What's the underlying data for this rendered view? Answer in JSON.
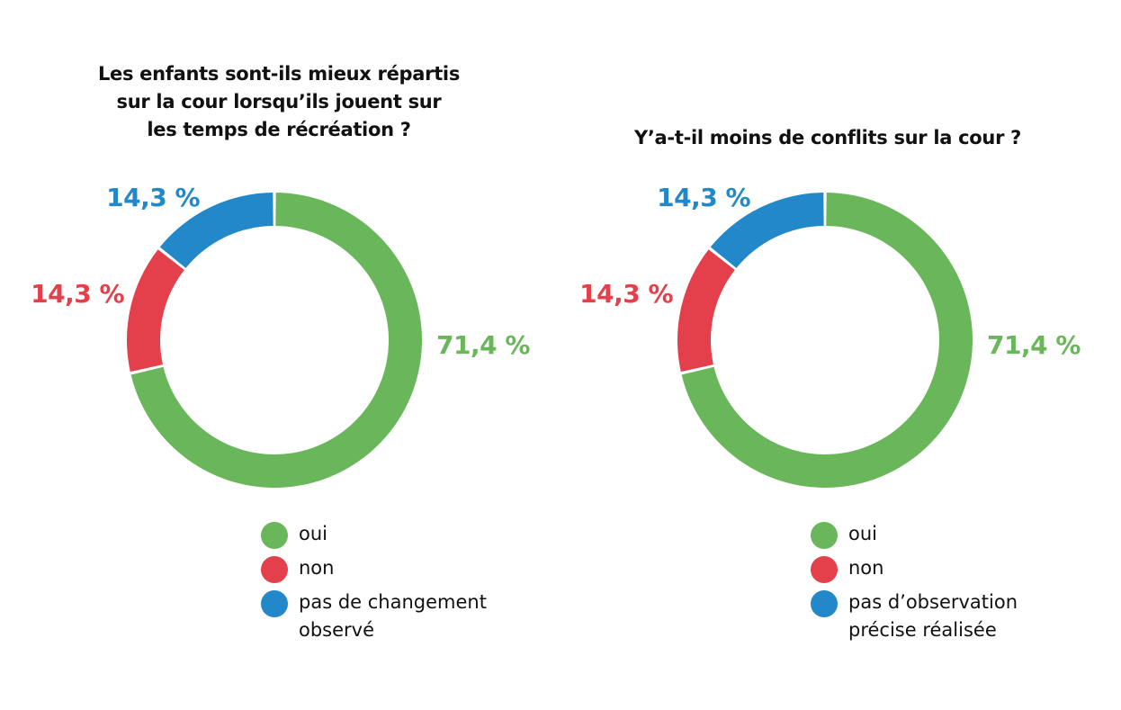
{
  "chart_data": [
    {
      "type": "pie",
      "variant": "donut",
      "title": "Les enfants sont-ils mieux répartis\nsur la cour lorsqu’ils jouent sur\nles temps de récréation ?",
      "categories": [
        "oui",
        "non",
        "pas de changement\nobservé"
      ],
      "values": [
        71.4,
        14.3,
        14.3
      ],
      "value_labels": [
        "71,4 %",
        "14,3 %",
        "14,3 %"
      ],
      "colors": [
        "#69b75a",
        "#e3404c",
        "#2288c9"
      ],
      "start_angle": "top, clockwise",
      "legend": "bottom"
    },
    {
      "type": "pie",
      "variant": "donut",
      "title": "Y’a-t-il moins de conflits sur la cour ?",
      "categories": [
        "oui",
        "non",
        "pas d’observation\nprécise réalisée"
      ],
      "values": [
        71.4,
        14.3,
        14.3
      ],
      "value_labels": [
        "71,4 %",
        "14,3 %",
        "14,3 %"
      ],
      "colors": [
        "#69b75a",
        "#e3404c",
        "#2288c9"
      ],
      "start_angle": "top, clockwise",
      "legend": "bottom"
    }
  ]
}
